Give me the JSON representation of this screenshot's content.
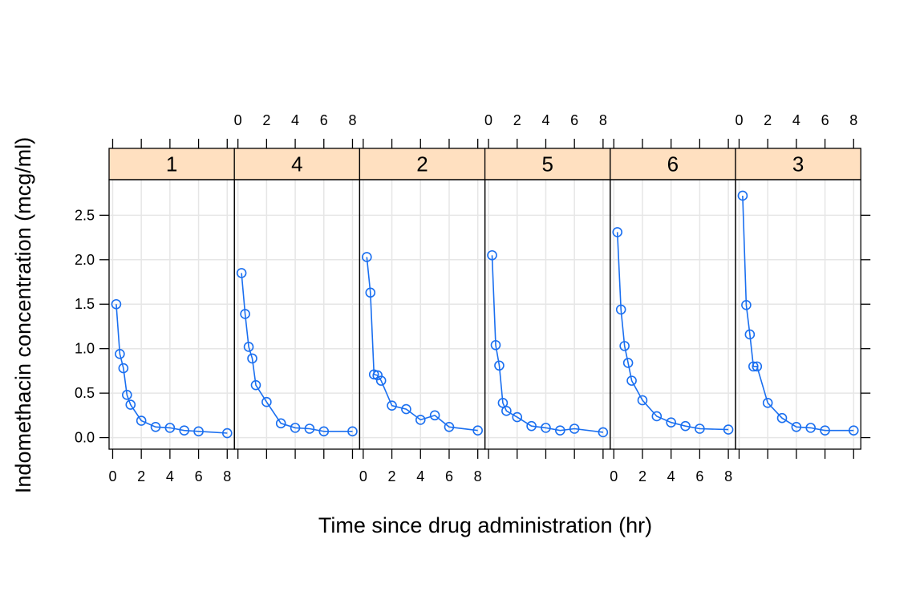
{
  "chart_data": {
    "type": "line",
    "layout": "trellis-1x6",
    "xlabel": "Time since drug administration (hr)",
    "ylabel": "Indomethacin concentration (mcg/ml)",
    "xlim": [
      -0.25,
      8.5
    ],
    "ylim": [
      -0.13,
      2.9
    ],
    "x_ticks": [
      0,
      2,
      4,
      6,
      8
    ],
    "y_ticks": [
      0.0,
      0.5,
      1.0,
      1.5,
      2.0,
      2.5
    ],
    "y_tick_labels": [
      "0.0",
      "0.5",
      "1.0",
      "1.5",
      "2.0",
      "2.5"
    ],
    "x_tick_labels": [
      "0",
      "2",
      "4",
      "6",
      "8"
    ],
    "grid": true,
    "colors": {
      "series": "#1a6ff0",
      "strip": "#ffe0c0",
      "grid": "#e6e6e6"
    },
    "panels": [
      {
        "label": "1",
        "x": [
          0.25,
          0.5,
          0.75,
          1,
          1.25,
          2,
          3,
          4,
          5,
          6,
          8
        ],
        "y": [
          1.5,
          0.94,
          0.78,
          0.48,
          0.37,
          0.19,
          0.12,
          0.11,
          0.08,
          0.07,
          0.05
        ]
      },
      {
        "label": "4",
        "x": [
          0.25,
          0.5,
          0.75,
          1,
          1.25,
          2,
          3,
          4,
          5,
          6,
          8
        ],
        "y": [
          1.85,
          1.39,
          1.02,
          0.89,
          0.59,
          0.4,
          0.16,
          0.11,
          0.1,
          0.07,
          0.07
        ]
      },
      {
        "label": "2",
        "x": [
          0.25,
          0.5,
          0.75,
          1,
          1.25,
          2,
          3,
          4,
          5,
          6,
          8
        ],
        "y": [
          2.03,
          1.63,
          0.71,
          0.7,
          0.64,
          0.36,
          0.32,
          0.2,
          0.25,
          0.12,
          0.08
        ]
      },
      {
        "label": "5",
        "x": [
          0.25,
          0.5,
          0.75,
          1,
          1.25,
          2,
          3,
          4,
          5,
          6,
          8
        ],
        "y": [
          2.05,
          1.04,
          0.81,
          0.39,
          0.3,
          0.23,
          0.13,
          0.11,
          0.08,
          0.1,
          0.06
        ]
      },
      {
        "label": "6",
        "x": [
          0.25,
          0.5,
          0.75,
          1,
          1.25,
          2,
          3,
          4,
          5,
          6,
          8
        ],
        "y": [
          2.31,
          1.44,
          1.03,
          0.84,
          0.64,
          0.42,
          0.24,
          0.17,
          0.13,
          0.1,
          0.09
        ]
      },
      {
        "label": "3",
        "x": [
          0.25,
          0.5,
          0.75,
          1,
          1.25,
          2,
          3,
          4,
          5,
          6,
          8
        ],
        "y": [
          2.72,
          1.49,
          1.16,
          0.8,
          0.8,
          0.39,
          0.22,
          0.12,
          0.11,
          0.08,
          0.08
        ]
      }
    ]
  }
}
